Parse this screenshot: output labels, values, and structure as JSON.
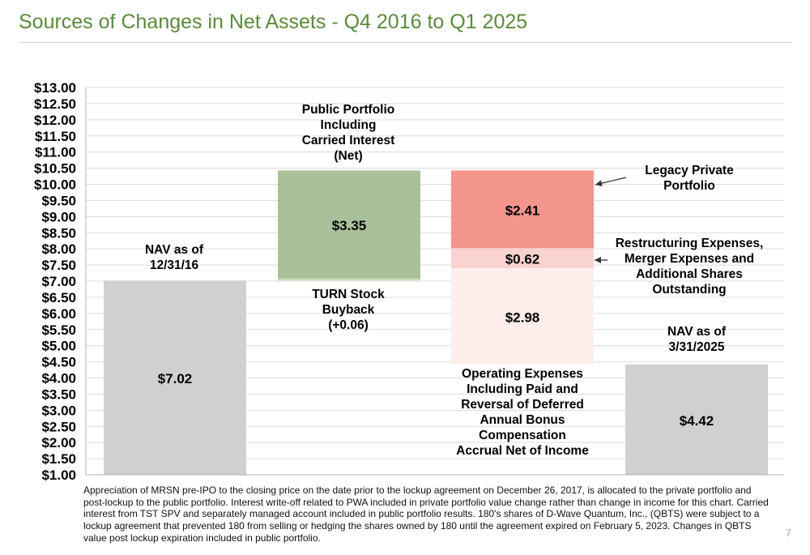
{
  "slide": {
    "title": "Sources of Changes in Net Assets - Q4 2016 to Q1 2025",
    "footnote": "Appreciation of MRSN pre-IPO to the closing price on the date prior to the lockup agreement on December 26, 2017,  is allocated to the private portfolio and post-lockup to the public portfolio.  Interest write-off related to PWA included in private portfolio value change rather than change in income for this chart.  Carried interest from TST SPV and separately managed account included in public portfolio results.  180's shares of D-Wave Quantum, Inc., (QBTS) were subject to a lockup agreement that prevented 180 from selling or hedging the shares owned by 180 until the agreement expired on February 5, 2023.  Changes in QBTS value post lockup expiration included in public portfolio.",
    "page_number": "7"
  },
  "colors": {
    "title": "#5b8a3c",
    "nav_bar": "#d0d0d0",
    "public_portfolio": "#a9c19a",
    "turn_buyback": "#c9dcbb",
    "legacy_private": "#f4958b",
    "restructuring": "#f9d3cf",
    "operating_expenses": "#fdeeec"
  },
  "chart_data": {
    "type": "bar",
    "subtype": "waterfall",
    "categories": [
      "NAV as of 12/31/16",
      "Public Portfolio / TURN Stock Buyback",
      "Expenses and Legacy Private Portfolio",
      "NAV as of 3/31/2025"
    ],
    "ylim": [
      1.0,
      13.0
    ],
    "ytick_step": 0.5,
    "ytick_labels": [
      "$13.00",
      "$12.50",
      "$12.00",
      "$11.50",
      "$11.00",
      "$10.50",
      "$10.00",
      "$9.50",
      "$9.00",
      "$8.50",
      "$8.00",
      "$7.50",
      "$7.00",
      "$6.50",
      "$6.00",
      "$5.50",
      "$5.00",
      "$4.50",
      "$4.00",
      "$3.50",
      "$3.00",
      "$2.50",
      "$2.00",
      "$1.50",
      "$1.00"
    ],
    "grid": true,
    "segments": [
      {
        "category": 0,
        "from": 1.0,
        "to": 7.02,
        "value": 7.02,
        "value_label": "$7.02",
        "color_key": "nav_bar"
      },
      {
        "category": 1,
        "from": 7.02,
        "to": 7.08,
        "value": 0.06,
        "value_label": "",
        "color_key": "turn_buyback"
      },
      {
        "category": 1,
        "from": 7.08,
        "to": 10.43,
        "value": 3.35,
        "value_label": "$3.35",
        "color_key": "public_portfolio"
      },
      {
        "category": 2,
        "from": 10.43,
        "to": 8.02,
        "value": -2.41,
        "value_label": "$2.41",
        "color_key": "legacy_private"
      },
      {
        "category": 2,
        "from": 8.02,
        "to": 7.4,
        "value": -0.62,
        "value_label": "$0.62",
        "color_key": "restructuring"
      },
      {
        "category": 2,
        "from": 7.4,
        "to": 4.42,
        "value": -2.98,
        "value_label": "$2.98",
        "color_key": "operating_expenses"
      },
      {
        "category": 3,
        "from": 1.0,
        "to": 4.42,
        "value": 4.42,
        "value_label": "$4.42",
        "color_key": "nav_bar"
      }
    ],
    "annotations": [
      {
        "lines": [
          "NAV as of",
          "12/31/16"
        ]
      },
      {
        "lines": [
          "Public Portfolio",
          "Including",
          "Carried Interest",
          "(Net)"
        ]
      },
      {
        "lines": [
          "TURN Stock",
          "Buyback",
          "(+0.06)"
        ]
      },
      {
        "lines": [
          "Legacy Private",
          "Portfolio"
        ]
      },
      {
        "lines": [
          "Restructuring Expenses,",
          "Merger Expenses and",
          "Additional Shares",
          "Outstanding"
        ]
      },
      {
        "lines": [
          "NAV as of",
          "3/31/2025"
        ]
      },
      {
        "lines": [
          "Operating Expenses",
          "Including Paid and",
          "Reversal of Deferred",
          "Annual Bonus",
          "Compensation",
          "Accrual Net of Income"
        ]
      }
    ]
  }
}
